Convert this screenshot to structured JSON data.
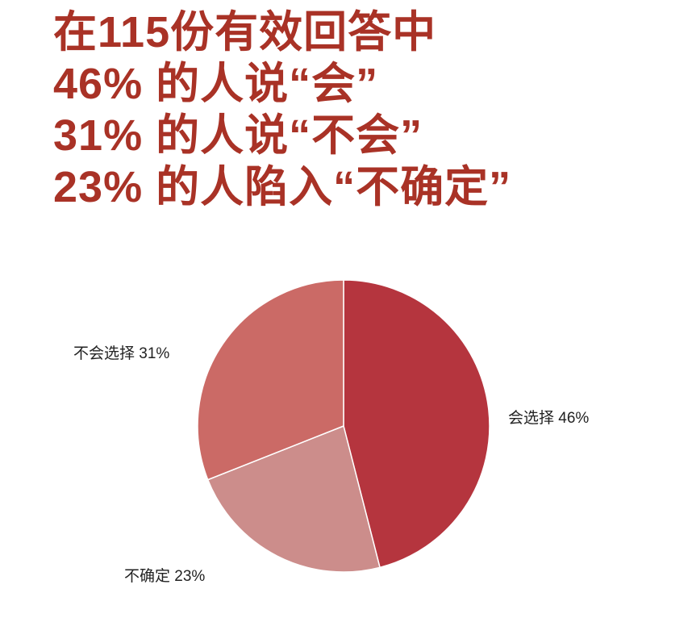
{
  "title_lines": [
    "在115份有效回答中",
    "46% 的人说“会”",
    "31% 的人说“不会”",
    "23% 的人陷入“不确定”"
  ],
  "chart_data": {
    "type": "pie",
    "start": "top",
    "direction": "clockwise",
    "slices": [
      {
        "label": "会选择",
        "value": 46,
        "display": "46%",
        "color": "#B5353E"
      },
      {
        "label": "不确定",
        "value": 23,
        "display": "23%",
        "color": "#CC8D8B"
      },
      {
        "label": "不会选择",
        "value": 31,
        "display": "31%",
        "color": "#CB6A66"
      }
    ]
  }
}
